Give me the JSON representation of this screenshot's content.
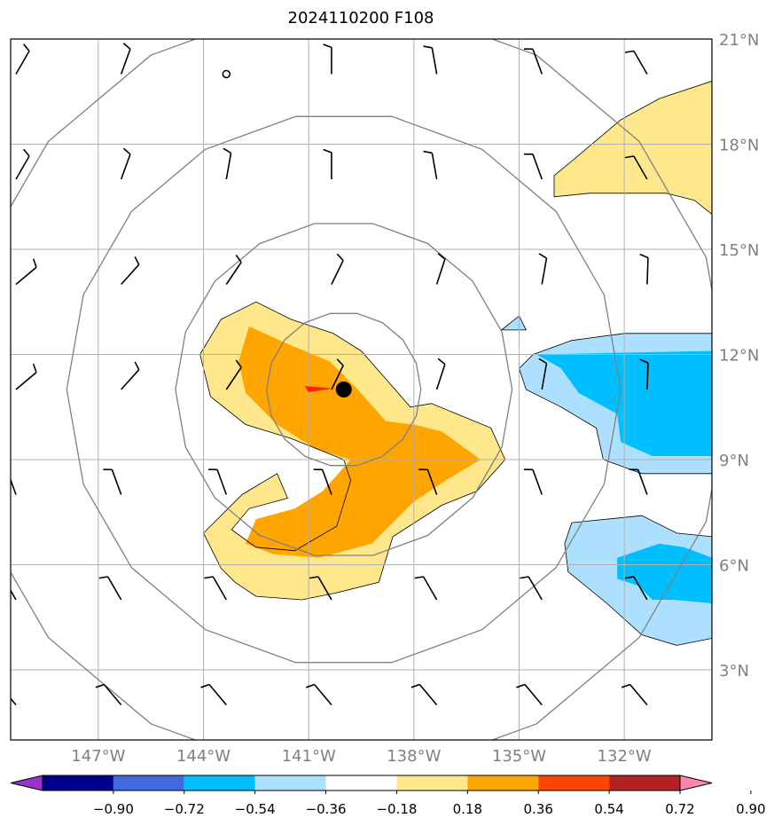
{
  "chart_data": {
    "type": "map",
    "title": "2024110200 F108",
    "projection": "lat-lon",
    "lon_range": [
      -149.5,
      -129.5
    ],
    "lat_range": [
      1,
      21
    ],
    "grid": true,
    "x_ticks": [
      {
        "value": -147,
        "label": "147°W"
      },
      {
        "value": -144,
        "label": "144°W"
      },
      {
        "value": -141,
        "label": "141°W"
      },
      {
        "value": -138,
        "label": "138°W"
      },
      {
        "value": -135,
        "label": "135°W"
      },
      {
        "value": -132,
        "label": "132°W"
      }
    ],
    "y_ticks": [
      {
        "value": 3,
        "label": "3°N"
      },
      {
        "value": 6,
        "label": "6°N"
      },
      {
        "value": 9,
        "label": "9°N"
      },
      {
        "value": 12,
        "label": "12°N"
      },
      {
        "value": 15,
        "label": "15°N"
      },
      {
        "value": 18,
        "label": "18°N"
      },
      {
        "value": 21,
        "label": "21°N"
      }
    ],
    "storm_center": {
      "lon": -140,
      "lat": 11.0
    },
    "range_rings_deg": [
      2.2,
      4.8,
      7.9,
      11.0
    ],
    "colorbar": {
      "levels": [
        -0.9,
        -0.72,
        -0.54,
        -0.36,
        -0.18,
        0.18,
        0.36,
        0.54,
        0.72,
        0.9
      ],
      "labels": [
        "−0.90",
        "−0.72",
        "−0.54",
        "−0.36",
        "−0.18",
        "0.18",
        "0.36",
        "0.54",
        "0.72",
        "0.90"
      ],
      "colors": [
        "#9932CC",
        "#00008B",
        "#4169E1",
        "#00BFFF",
        "#ADDFFF",
        "#FFFFFF",
        "#FFE88C",
        "#FFA500",
        "#FF4500",
        "#B22222",
        "#FF85B0"
      ],
      "extend": "both"
    },
    "contour_regions": [
      {
        "level": 0.18,
        "color": "#FFE88C",
        "points": [
          [
            -143.5,
            13.0
          ],
          [
            -142.5,
            13.5
          ],
          [
            -141.5,
            13.0
          ],
          [
            -140.3,
            12.6
          ],
          [
            -139.5,
            12.1
          ],
          [
            -138.8,
            11.3
          ],
          [
            -138.1,
            10.5
          ],
          [
            -137.5,
            10.6
          ],
          [
            -135.8,
            9.9
          ],
          [
            -135.4,
            9.0
          ],
          [
            -136.2,
            8.1
          ],
          [
            -137.2,
            7.7
          ],
          [
            -138.6,
            6.8
          ],
          [
            -139.0,
            5.5
          ],
          [
            -140.2,
            5.2
          ],
          [
            -141.2,
            5.0
          ],
          [
            -142.5,
            5.1
          ],
          [
            -143.1,
            5.5
          ],
          [
            -143.5,
            5.9
          ],
          [
            -144.0,
            6.9
          ],
          [
            -142.9,
            8.0
          ],
          [
            -141.9,
            8.6
          ],
          [
            -141.6,
            7.9
          ],
          [
            -142.7,
            7.6
          ],
          [
            -143.2,
            7.0
          ],
          [
            -142.5,
            6.5
          ],
          [
            -141.4,
            6.4
          ],
          [
            -140.2,
            7.1
          ],
          [
            -139.8,
            8.4
          ],
          [
            -140.0,
            9.0
          ],
          [
            -141.5,
            9.6
          ],
          [
            -142.8,
            10.0
          ],
          [
            -143.8,
            10.8
          ],
          [
            -144.1,
            12.0
          ]
        ]
      },
      {
        "level": 0.36,
        "color": "#FFA500",
        "points": [
          [
            -142.7,
            12.8
          ],
          [
            -141.6,
            12.3
          ],
          [
            -140.4,
            11.8
          ],
          [
            -139.6,
            11.0
          ],
          [
            -138.8,
            10.1
          ],
          [
            -138.0,
            10.0
          ],
          [
            -137.2,
            9.8
          ],
          [
            -136.1,
            9.0
          ],
          [
            -137.1,
            8.4
          ],
          [
            -138.0,
            7.8
          ],
          [
            -139.2,
            6.6
          ],
          [
            -140.7,
            6.2
          ],
          [
            -142.0,
            6.3
          ],
          [
            -142.8,
            6.6
          ],
          [
            -142.5,
            7.3
          ],
          [
            -141.4,
            7.6
          ],
          [
            -140.6,
            8.1
          ],
          [
            -139.8,
            9.0
          ],
          [
            -140.8,
            9.3
          ],
          [
            -141.9,
            10.0
          ],
          [
            -142.8,
            10.9
          ],
          [
            -143.0,
            11.8
          ]
        ]
      },
      {
        "level": -0.18,
        "color": "#ADDFFF",
        "points": [
          [
            -133.5,
            12.4
          ],
          [
            -132.0,
            12.6
          ],
          [
            -129.5,
            12.6
          ],
          [
            -129.5,
            8.6
          ],
          [
            -131.5,
            8.6
          ],
          [
            -132.6,
            9.0
          ],
          [
            -132.8,
            9.9
          ],
          [
            -133.8,
            10.5
          ],
          [
            -134.8,
            11.0
          ],
          [
            -135.0,
            11.6
          ],
          [
            -134.6,
            12.0
          ]
        ]
      },
      {
        "level": -0.36,
        "color": "#00BFFF",
        "points": [
          [
            -134.5,
            12.0
          ],
          [
            -129.5,
            12.1
          ],
          [
            -129.5,
            9.1
          ],
          [
            -131.2,
            9.1
          ],
          [
            -132.1,
            9.5
          ],
          [
            -132.2,
            10.3
          ],
          [
            -133.3,
            10.9
          ],
          [
            -133.8,
            11.6
          ]
        ]
      },
      {
        "level": -0.18,
        "color": "#ADDFFF",
        "points": [
          [
            -135.0,
            13.1
          ],
          [
            -134.8,
            12.7
          ],
          [
            -135.5,
            12.7
          ]
        ]
      },
      {
        "level": -0.18,
        "color": "#ADDFFF",
        "points": [
          [
            -133.5,
            7.2
          ],
          [
            -131.5,
            7.4
          ],
          [
            -130.5,
            6.9
          ],
          [
            -129.5,
            6.8
          ],
          [
            -129.5,
            3.9
          ],
          [
            -130.5,
            3.7
          ],
          [
            -131.5,
            4.0
          ],
          [
            -132.5,
            4.9
          ],
          [
            -133.6,
            5.8
          ],
          [
            -133.7,
            6.6
          ]
        ]
      },
      {
        "level": -0.36,
        "color": "#00BFFF",
        "points": [
          [
            -132.2,
            5.6
          ],
          [
            -131.6,
            5.4
          ],
          [
            -131.2,
            5.0
          ],
          [
            -130.6,
            5.0
          ],
          [
            -129.5,
            4.9
          ],
          [
            -129.5,
            6.2
          ],
          [
            -130.3,
            6.5
          ],
          [
            -131.0,
            6.6
          ],
          [
            -132.2,
            6.2
          ]
        ]
      },
      {
        "level": 0.18,
        "color": "#FFE88C",
        "points": [
          [
            -133.4,
            17.6
          ],
          [
            -132.1,
            18.7
          ],
          [
            -131.0,
            19.3
          ],
          [
            -129.5,
            19.8
          ],
          [
            -129.5,
            16.0
          ],
          [
            -130.0,
            16.4
          ],
          [
            -130.8,
            16.6
          ],
          [
            -131.5,
            16.6
          ],
          [
            -133.0,
            16.6
          ],
          [
            -134.0,
            16.5
          ],
          [
            -134.0,
            17.1
          ]
        ]
      }
    ]
  }
}
